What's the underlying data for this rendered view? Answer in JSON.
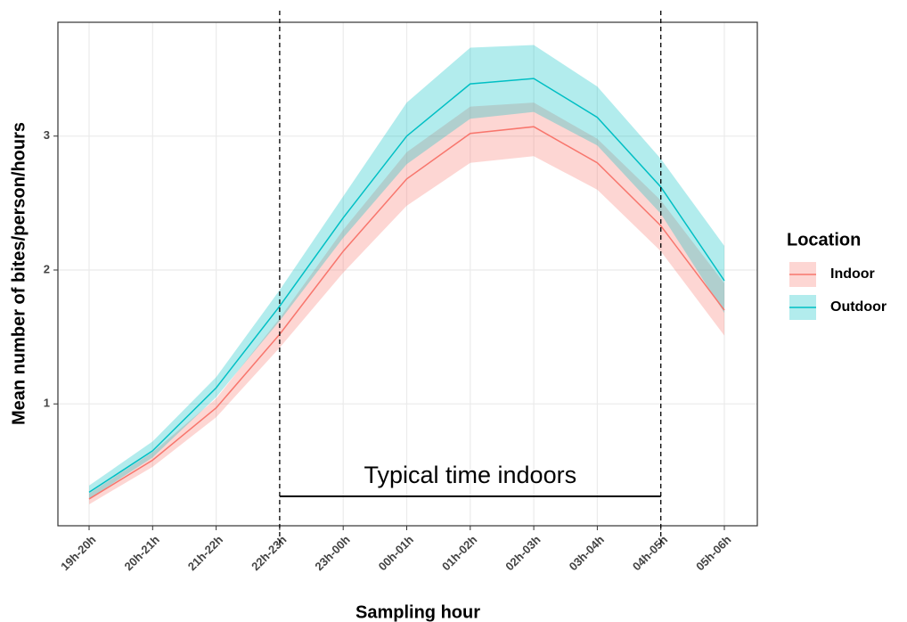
{
  "chart_data": {
    "type": "line",
    "x_label": "Sampling hour",
    "y_label": "Mean number of bites/person/hours",
    "legend_title": "Location",
    "categories": [
      "19h-20h",
      "20h-21h",
      "21h-22h",
      "22h-23h",
      "23h-00h",
      "00h-01h",
      "01h-02h",
      "02h-03h",
      "03h-04h",
      "04h-05h",
      "05h-06h"
    ],
    "series": [
      {
        "name": "Indoor",
        "color": "#f8766d",
        "values": [
          0.29,
          0.58,
          0.97,
          1.52,
          2.14,
          2.68,
          3.02,
          3.07,
          2.8,
          2.33,
          1.7
        ],
        "upper": [
          0.33,
          0.64,
          1.04,
          1.64,
          2.3,
          2.88,
          3.22,
          3.25,
          2.98,
          2.52,
          1.9
        ],
        "lower": [
          0.25,
          0.53,
          0.9,
          1.42,
          1.98,
          2.48,
          2.8,
          2.85,
          2.6,
          2.14,
          1.51
        ]
      },
      {
        "name": "Outdoor",
        "color": "#00bfc4",
        "values": [
          0.34,
          0.65,
          1.12,
          1.73,
          2.39,
          3.0,
          3.39,
          3.43,
          3.14,
          2.62,
          1.92
        ],
        "upper": [
          0.39,
          0.72,
          1.2,
          1.85,
          2.55,
          3.25,
          3.66,
          3.68,
          3.37,
          2.83,
          2.18
        ],
        "lower": [
          0.29,
          0.6,
          1.05,
          1.62,
          2.24,
          2.79,
          3.13,
          3.18,
          2.93,
          2.42,
          1.68
        ]
      }
    ],
    "ylim": [
      0.09,
      3.85
    ],
    "yticks": [
      1,
      2,
      3
    ],
    "grid": true,
    "legend_position": "right",
    "annotation": {
      "text": "Typical time indoors",
      "x_start": "22h-23h",
      "x_end": "04h-05h",
      "y": 0.31
    }
  }
}
